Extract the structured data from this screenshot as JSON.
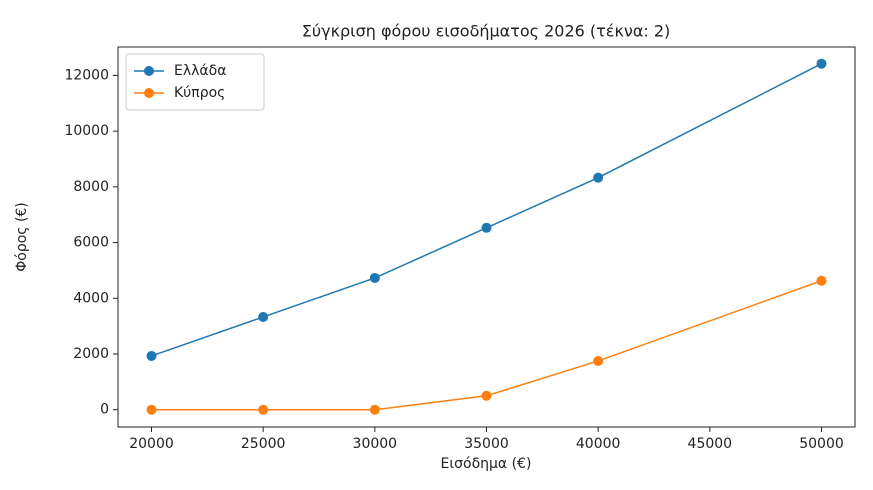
{
  "chart_data": {
    "type": "line",
    "title": "Σύγκριση φόρου εισοδήματος 2026 (τέκνα: 2)",
    "xlabel": "Εισόδημα (€)",
    "ylabel": "Φόρος (€)",
    "x": [
      20000,
      25000,
      30000,
      35000,
      40000,
      50000
    ],
    "series": [
      {
        "name": "Ελλάδα",
        "color": "#1f77b4",
        "values": [
          1930,
          3330,
          4730,
          6530,
          8330,
          12420
        ]
      },
      {
        "name": "Κύπρος",
        "color": "#ff7f0e",
        "values": [
          0,
          0,
          0,
          500,
          1750,
          4630
        ]
      }
    ],
    "xlim": [
      18500,
      51500
    ],
    "ylim": [
      -620,
      13020
    ],
    "xticks": [
      20000,
      25000,
      30000,
      35000,
      40000,
      45000,
      50000
    ],
    "yticks": [
      0,
      2000,
      4000,
      6000,
      8000,
      10000,
      12000
    ],
    "legend": "upper left",
    "grid": false
  }
}
